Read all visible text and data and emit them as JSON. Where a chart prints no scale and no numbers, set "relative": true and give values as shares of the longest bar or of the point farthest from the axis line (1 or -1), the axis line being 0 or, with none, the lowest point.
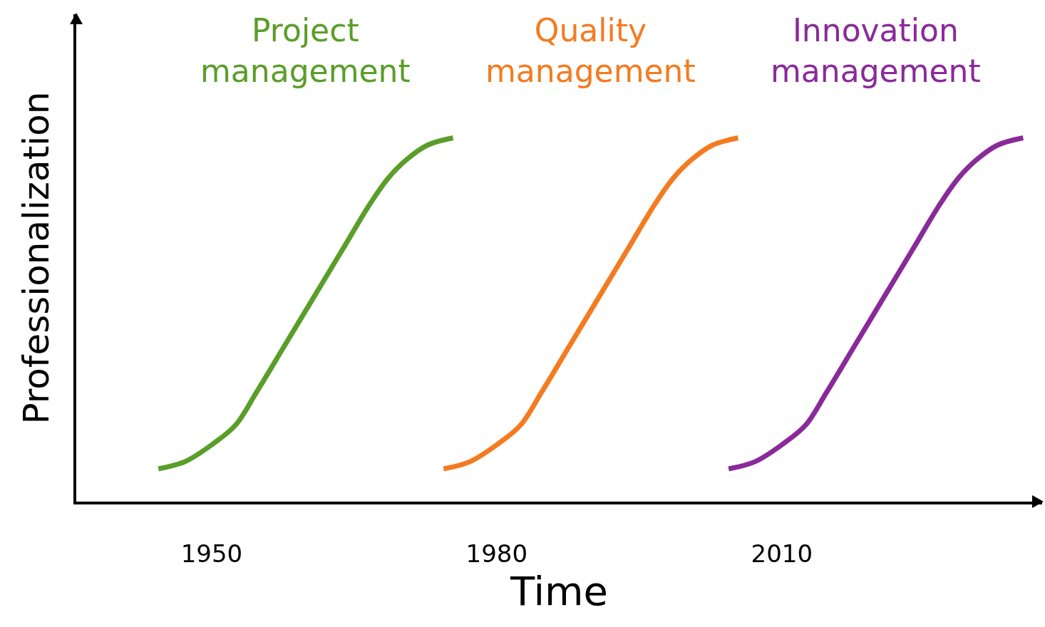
{
  "chart_data": {
    "type": "line",
    "relative": true,
    "xlabel": "Time",
    "ylabel": "Professionalization",
    "xlim": [
      1935.75,
      2037.4
    ],
    "xticks": [
      1950,
      1980,
      2010
    ],
    "legend": false,
    "grid": false,
    "marker": "none",
    "line_style": "solid",
    "series": [
      {
        "name": "Project management",
        "color": "#5a9e2a",
        "x": [
          1944.4,
          1947.2,
          1950.2,
          1952.5,
          1954.7,
          1957.7,
          1960.7,
          1963.7,
          1966.7,
          1968.6,
          1970.5,
          1972.7,
          1975.4
        ],
        "values": [
          0.09,
          0.11,
          0.16,
          0.21,
          0.3,
          0.43,
          0.56,
          0.69,
          0.82,
          0.89,
          0.94,
          0.98,
          1
        ]
      },
      {
        "name": "Quality management",
        "color": "#f47b20",
        "x": [
          1974.4,
          1977.2,
          1980.2,
          1982.5,
          1984.7,
          1987.7,
          1990.7,
          1993.7,
          1996.7,
          1998.6,
          2000.5,
          2002.7,
          2005.4
        ],
        "values": [
          0.09,
          0.11,
          0.16,
          0.21,
          0.3,
          0.43,
          0.56,
          0.69,
          0.82,
          0.89,
          0.94,
          0.98,
          1
        ]
      },
      {
        "name": "Innovation management",
        "color": "#8a2a9a",
        "x": [
          2004.4,
          2007.2,
          2010.2,
          2012.5,
          2014.7,
          2017.7,
          2020.7,
          2023.7,
          2026.7,
          2028.6,
          2030.5,
          2032.7,
          2035.4
        ],
        "values": [
          0.09,
          0.11,
          0.16,
          0.21,
          0.3,
          0.43,
          0.56,
          0.69,
          0.82,
          0.89,
          0.94,
          0.98,
          1
        ]
      }
    ]
  }
}
